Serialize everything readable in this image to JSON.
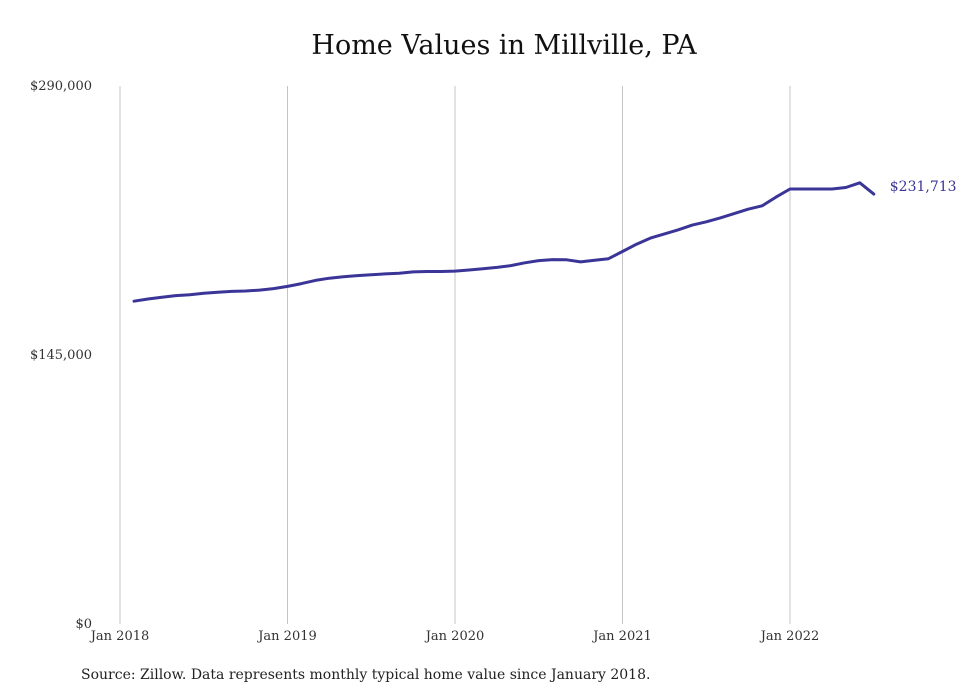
{
  "chart_data": {
    "type": "line",
    "title": "Home Values in Millville, PA",
    "xlabel": "",
    "ylabel": "",
    "ylim": [
      0,
      290000
    ],
    "y_ticks": [
      "$290,000",
      "$145,000",
      "$0"
    ],
    "x_ticks": [
      "Jan 2018",
      "Jan 2019",
      "Jan 2020",
      "Jan 2021",
      "Jan 2022"
    ],
    "grid": "vertical lines at each January",
    "line_color": "#3b3598",
    "end_label": "$231,713",
    "series": [
      {
        "x": [
          "2018-02",
          "2018-03",
          "2018-04",
          "2018-05",
          "2018-06",
          "2018-07",
          "2018-08",
          "2018-09",
          "2018-10",
          "2018-11",
          "2018-12",
          "2019-01",
          "2019-02",
          "2019-03",
          "2019-04",
          "2019-05",
          "2019-06",
          "2019-07",
          "2019-08",
          "2019-09",
          "2019-10",
          "2019-11",
          "2019-12",
          "2020-01",
          "2020-02",
          "2020-03",
          "2020-04",
          "2020-05",
          "2020-06",
          "2020-07",
          "2020-08",
          "2020-09",
          "2020-10",
          "2020-11",
          "2020-12",
          "2021-01",
          "2021-02",
          "2021-03",
          "2021-04",
          "2021-05",
          "2021-06",
          "2021-07",
          "2021-08",
          "2021-09",
          "2021-10",
          "2021-11",
          "2021-12",
          "2022-01",
          "2022-02",
          "2022-03",
          "2022-04",
          "2022-05",
          "2022-06",
          "2022-07"
        ],
        "values": [
          174000,
          175200,
          176100,
          177000,
          177500,
          178300,
          178800,
          179300,
          179500,
          180000,
          180800,
          182000,
          183500,
          185200,
          186400,
          187200,
          187800,
          188300,
          188700,
          189100,
          189800,
          190000,
          190000,
          190200,
          190800,
          191500,
          192200,
          193200,
          194700,
          195900,
          196400,
          196300,
          195200,
          196100,
          196900,
          200800,
          204700,
          208000,
          210300,
          212500,
          215000,
          216800,
          218900,
          221200,
          223600,
          225400,
          230100,
          234500,
          234500,
          234500,
          234500,
          235300,
          237800,
          231713
        ]
      }
    ]
  },
  "footer": {
    "source": "Source: Zillow. Data represents monthly typical home value since January 2018."
  }
}
